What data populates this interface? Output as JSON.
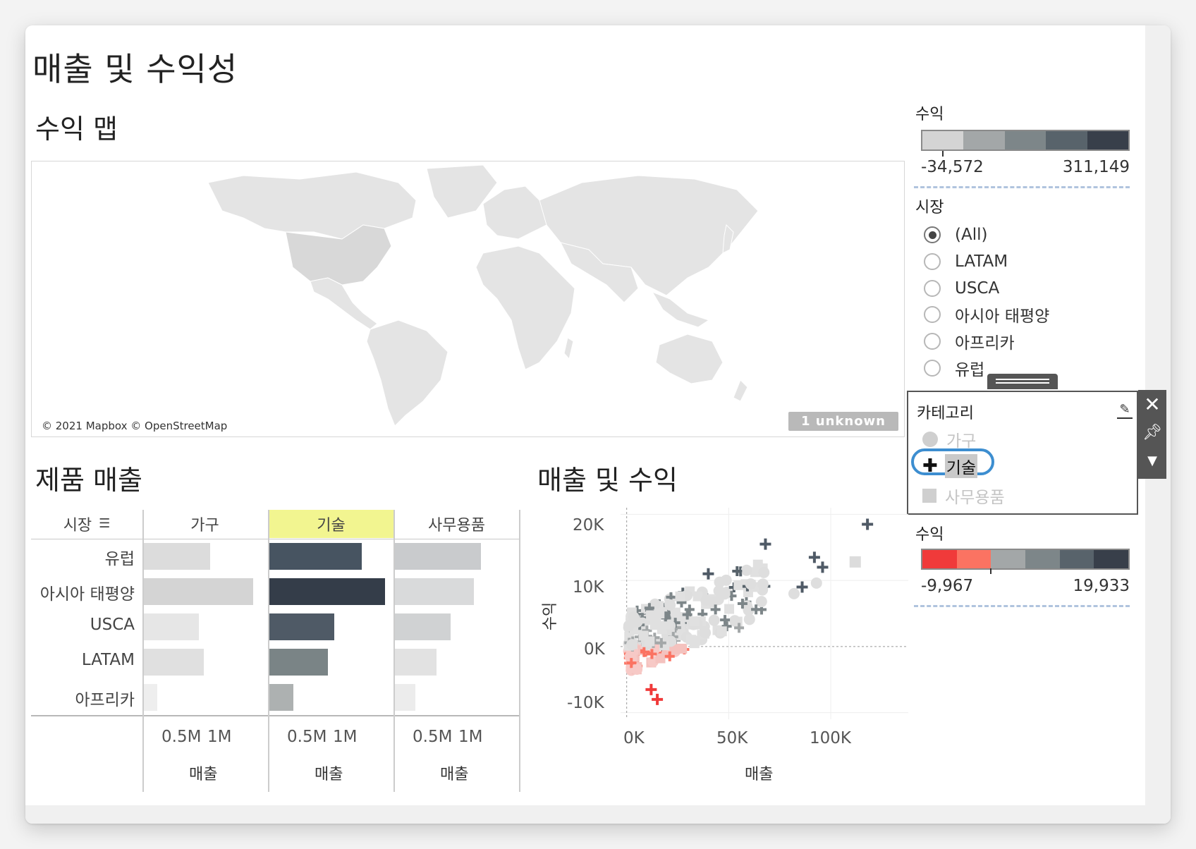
{
  "dashboard": {
    "title": "매출 및 수익성",
    "map": {
      "title": "수익 맵",
      "credit": "© 2021 Mapbox © OpenStreetMap",
      "unknown_badge": "1 unknown"
    },
    "bar_section": {
      "title": "제품 매출"
    },
    "scatter_section": {
      "title": "매출 및 수익"
    }
  },
  "legend_profit_map": {
    "title": "수익",
    "min": "-34,572",
    "max": "311,149",
    "colors": [
      "#d4d4d4",
      "#a3a7a8",
      "#7d8689",
      "#58636b",
      "#383f4a"
    ]
  },
  "market_filter": {
    "title": "시장",
    "options": [
      "(All)",
      "LATAM",
      "USCA",
      "아시아 태평양",
      "아프리카",
      "유럽"
    ],
    "selected": "(All)"
  },
  "category_legend": {
    "title": "카테고리",
    "items": [
      {
        "label": "가구",
        "shape": "circle",
        "state": "dimmed"
      },
      {
        "label": "기술",
        "shape": "cross",
        "state": "highlighted"
      },
      {
        "label": "사무용품",
        "shape": "square",
        "state": "dimmed"
      }
    ]
  },
  "legend_profit_scatter": {
    "title": "수익",
    "min": "-9,967",
    "max": "19,933",
    "colors": [
      "#f03a3a",
      "#fb7362",
      "#a3a7a8",
      "#7d8689",
      "#58636b",
      "#383f4a"
    ]
  },
  "icons": {
    "close": "close-icon",
    "pin": "pin-icon",
    "menu": "dropdown-icon",
    "edit": "pencil-icon",
    "sort": "sort-icon"
  },
  "chart_data": [
    {
      "type": "bar",
      "title": "제품 매출",
      "row_header": "시장",
      "categories": [
        "유럽",
        "아시아 태평양",
        "USCA",
        "LATAM",
        "아프리카"
      ],
      "columns": [
        "가구",
        "기술",
        "사무용품"
      ],
      "highlighted_column": "기술",
      "series": [
        {
          "name": "가구",
          "values": [
            880000,
            1460000,
            730000,
            800000,
            180000
          ]
        },
        {
          "name": "기술",
          "values": [
            1230000,
            1540000,
            870000,
            780000,
            320000
          ]
        },
        {
          "name": "사무용품",
          "values": [
            1150000,
            1050000,
            740000,
            560000,
            270000
          ]
        }
      ],
      "bar_colors": {
        "가구": [
          "#dcdcdc",
          "#d4d4d4",
          "#e6e6e6",
          "#e0e0e0",
          "#eeeeee"
        ],
        "기술": [
          "#475461",
          "#343d49",
          "#4f5a66",
          "#7a8486",
          "#adb1b1"
        ],
        "사무용품": [
          "#c9cbcd",
          "#d9dadb",
          "#d0d2d3",
          "#e2e2e2",
          "#ececec"
        ]
      },
      "xticks": [
        "0.5M",
        "1M"
      ],
      "xlabel": "매출",
      "xlim": [
        0,
        1600000
      ]
    },
    {
      "type": "scatter",
      "title": "매출 및 수익",
      "xlabel": "매출",
      "ylabel": "수익",
      "xticks": [
        "0K",
        "50K",
        "100K"
      ],
      "yticks": [
        "20K",
        "10K",
        "0K",
        "-10K"
      ],
      "xlim": [
        -3000,
        138000
      ],
      "ylim": [
        -11000,
        21000
      ]
    }
  ]
}
